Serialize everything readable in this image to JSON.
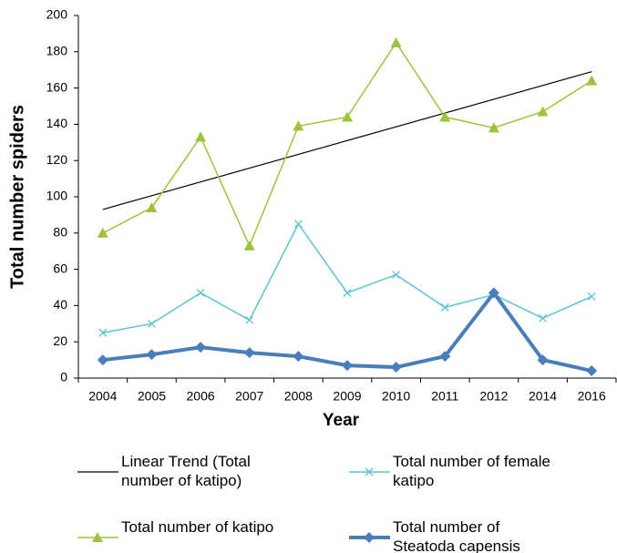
{
  "chart_data": {
    "type": "line",
    "xlabel": "Year",
    "ylabel": "Total number spiders",
    "categories": [
      "2004",
      "2005",
      "2006",
      "2007",
      "2008",
      "2009",
      "2010",
      "2011",
      "2012",
      "2014",
      "2016"
    ],
    "ylim": [
      0,
      200
    ],
    "yticks": [
      0,
      20,
      40,
      60,
      80,
      100,
      120,
      140,
      160,
      180,
      200
    ],
    "grid": false,
    "series": [
      {
        "name": "Linear Trend (Total number of katipo)",
        "color": "#000000",
        "marker": "none",
        "values": [
          93,
          100.6,
          108.2,
          115.8,
          123.4,
          131,
          138.6,
          146.2,
          153.8,
          161.4,
          169
        ]
      },
      {
        "name": "Total number of female katipo",
        "color": "#5bc4d4",
        "marker": "x",
        "values": [
          25,
          30,
          47,
          32,
          85,
          47,
          57,
          39,
          46,
          33,
          45
        ]
      },
      {
        "name": "Total number of katipo",
        "color": "#9dc23b",
        "marker": "triangle",
        "values": [
          80,
          94,
          133,
          73,
          139,
          144,
          185,
          144,
          138,
          147,
          164
        ]
      },
      {
        "name": "Total number of Steatoda capensis",
        "color": "#4a7ebb",
        "marker": "diamond",
        "values": [
          10,
          13,
          17,
          14,
          12,
          7,
          6,
          12,
          47,
          10,
          4
        ]
      }
    ]
  }
}
